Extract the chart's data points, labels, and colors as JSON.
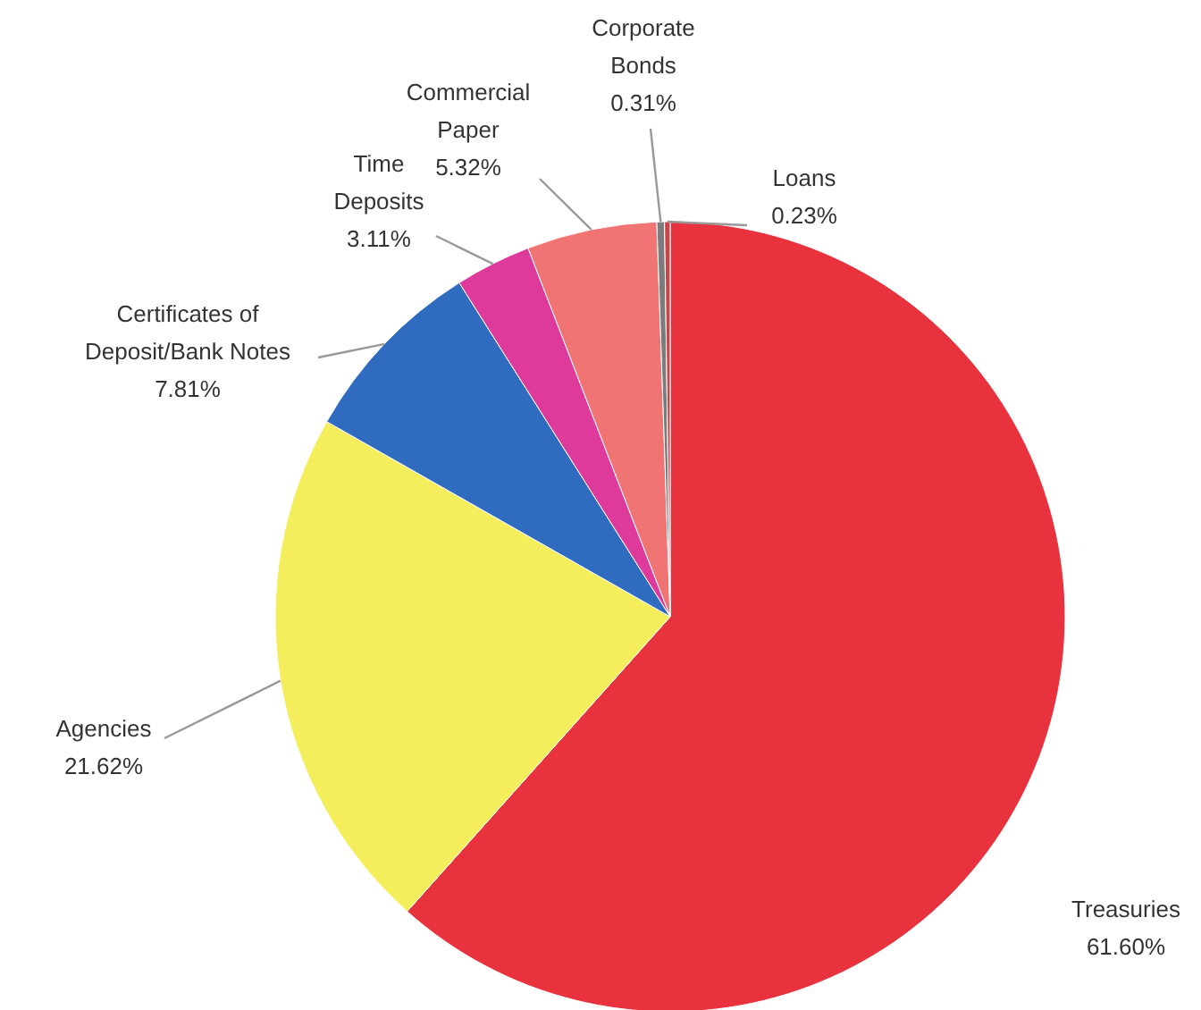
{
  "chart_data": {
    "type": "pie",
    "categories": [
      "Treasuries",
      "Agencies",
      "Certificates of Deposit/Bank Notes",
      "Time Deposits",
      "Commercial Paper",
      "Corporate Bonds",
      "Loans"
    ],
    "values": [
      61.6,
      21.62,
      7.81,
      3.11,
      5.32,
      0.31,
      0.23
    ],
    "colors": [
      "#e8323e",
      "#f4ee5c",
      "#2f6cc0",
      "#de3a9c",
      "#f07474",
      "#7c7c7c",
      "#c8464a"
    ],
    "value_labels": [
      "61.60%",
      "21.62%",
      "7.81%",
      "3.11%",
      "5.32%",
      "0.31%",
      "0.23%"
    ]
  }
}
